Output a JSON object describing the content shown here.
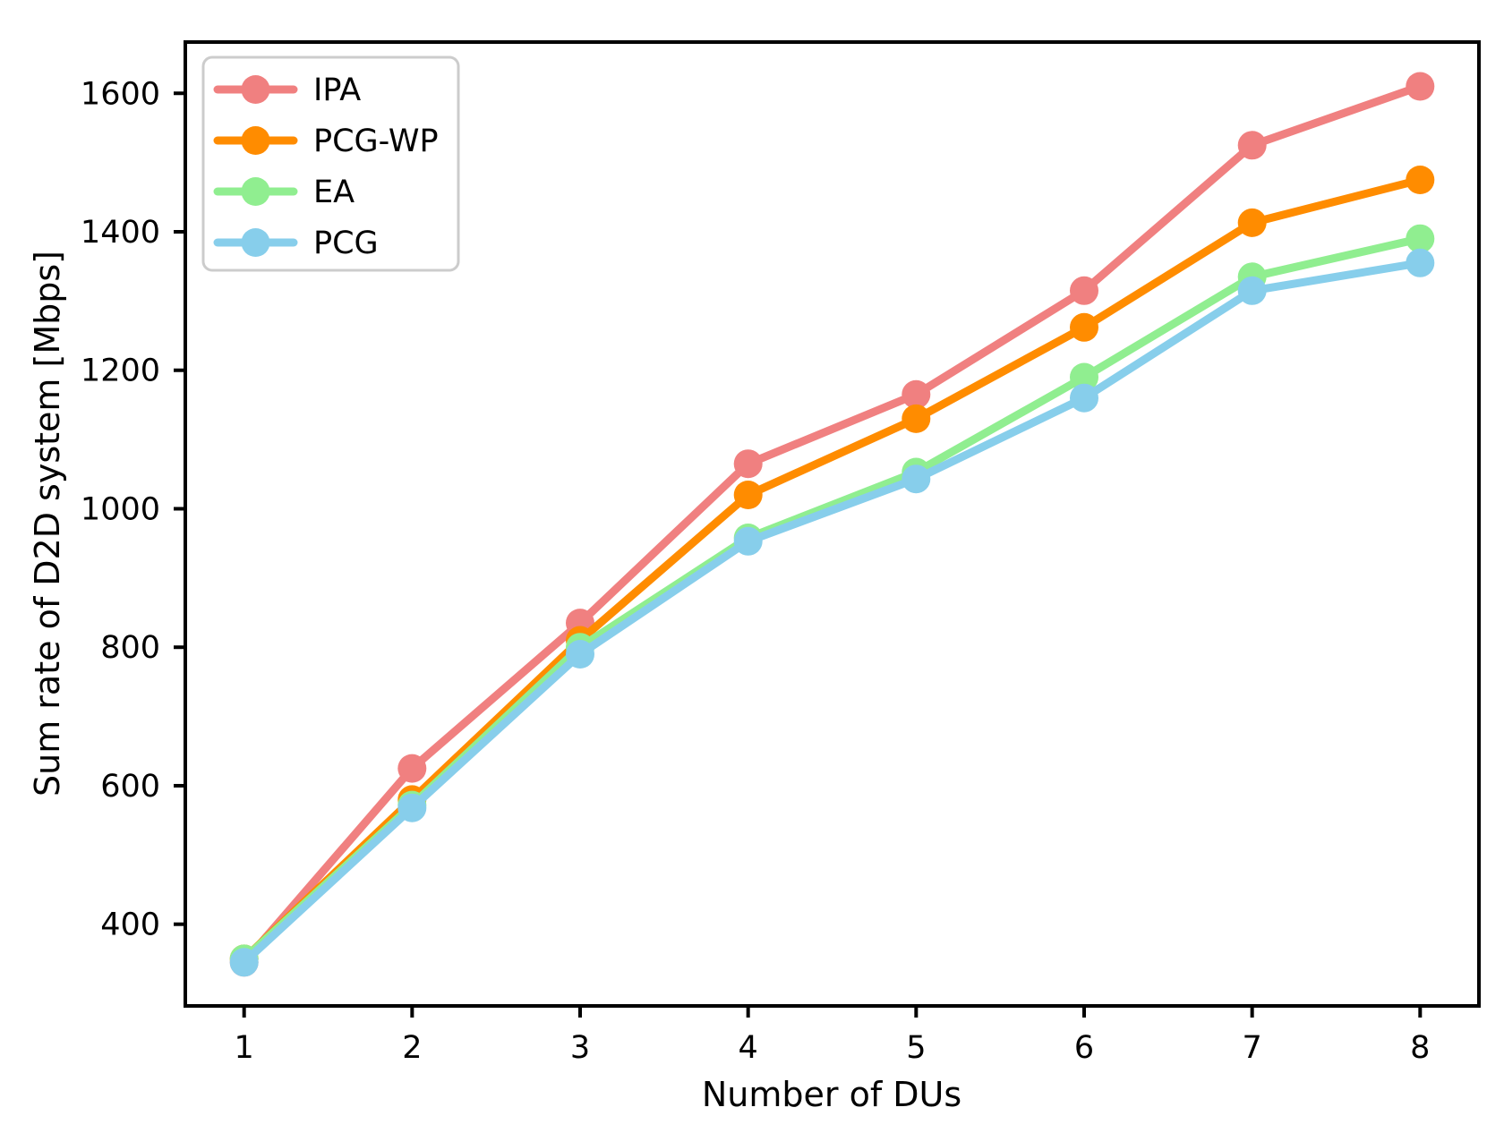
{
  "figure": {
    "background": "#ffffff"
  },
  "chart_data": {
    "type": "line",
    "title": "",
    "xlabel": "Number of DUs",
    "ylabel": "Sum rate of D2D system [Mbps]",
    "x": [
      1,
      2,
      3,
      4,
      5,
      6,
      7,
      8
    ],
    "xticks": [
      1,
      2,
      3,
      4,
      5,
      6,
      7,
      8
    ],
    "yticks": [
      400,
      600,
      800,
      1000,
      1200,
      1400,
      1600
    ],
    "xlim": [
      0.65,
      8.35
    ],
    "ylim": [
      282,
      1674
    ],
    "grid": false,
    "legend_position": "upper left",
    "frame_color": "#000000",
    "legend_border_color": "#cccccc",
    "legend_background": "#ffffff",
    "series": [
      {
        "name": "IPA",
        "color": "#F08080",
        "values": [
          345,
          625,
          835,
          1065,
          1165,
          1315,
          1525,
          1610
        ]
      },
      {
        "name": "PCG-WP",
        "color": "#FF8C00",
        "values": [
          350,
          580,
          810,
          1020,
          1130,
          1262,
          1413,
          1475
        ]
      },
      {
        "name": "EA",
        "color": "#90EE90",
        "values": [
          350,
          572,
          800,
          958,
          1053,
          1190,
          1335,
          1390
        ]
      },
      {
        "name": "PCG",
        "color": "#87CEEB",
        "values": [
          345,
          568,
          790,
          953,
          1043,
          1160,
          1315,
          1355
        ]
      }
    ]
  }
}
